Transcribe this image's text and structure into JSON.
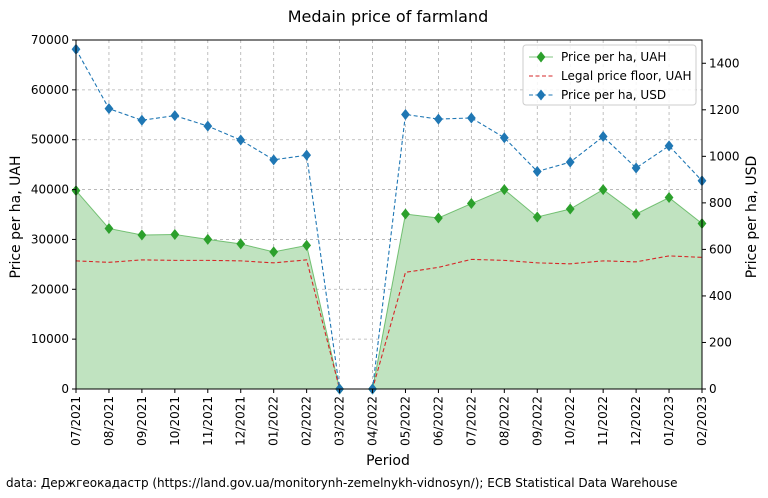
{
  "chart_data": {
    "type": "line",
    "title": "Medain price of farmland",
    "xlabel": "Period",
    "ylabel_left": "Price per ha, UAH",
    "ylabel_right": "Price per ha, USD",
    "ylim_left": [
      0,
      70000
    ],
    "ylim_right": [
      0,
      1500
    ],
    "yticks_left": [
      0,
      10000,
      20000,
      30000,
      40000,
      50000,
      60000,
      70000
    ],
    "yticks_right": [
      0,
      200,
      400,
      600,
      800,
      1000,
      1200,
      1400
    ],
    "grid": true,
    "legend_position": "top-right",
    "categories": [
      "07/2021",
      "08/2021",
      "09/2021",
      "10/2021",
      "11/2021",
      "12/2021",
      "01/2022",
      "02/2022",
      "03/2022",
      "04/2022",
      "05/2022",
      "06/2022",
      "07/2022",
      "08/2022",
      "09/2022",
      "10/2022",
      "11/2022",
      "12/2022",
      "01/2023",
      "02/2023"
    ],
    "series": [
      {
        "name": "Price per ha, UAH",
        "axis": "left",
        "style": "area-line-diamond",
        "color": "#2ca02c",
        "fill": "#c0e3c0",
        "values": [
          39800,
          32200,
          30900,
          31000,
          30000,
          29100,
          27500,
          28800,
          0,
          0,
          35100,
          34300,
          37200,
          40000,
          34500,
          36100,
          40000,
          35100,
          38400,
          33200
        ]
      },
      {
        "name": "Legal price floor, UAH",
        "axis": "left",
        "style": "dashed",
        "color": "#d62728",
        "values": [
          25700,
          25400,
          25900,
          25800,
          25800,
          25700,
          25300,
          25900,
          0,
          0,
          23400,
          24400,
          26000,
          25800,
          25300,
          25100,
          25700,
          25500,
          26700,
          26400
        ]
      },
      {
        "name": "Price per ha, USD",
        "axis": "right",
        "style": "dashed-diamond",
        "color": "#1f77b4",
        "values": [
          1460,
          1205,
          1155,
          1175,
          1130,
          1070,
          985,
          1005,
          0,
          0,
          1180,
          1160,
          1165,
          1080,
          935,
          975,
          1085,
          950,
          1045,
          895
        ]
      }
    ]
  },
  "source_text": "data: Держгеокадастр (https://land.gov.ua/monitorynh-zemelnykh-vidnosyn/); ECB Statistical Data Warehouse"
}
